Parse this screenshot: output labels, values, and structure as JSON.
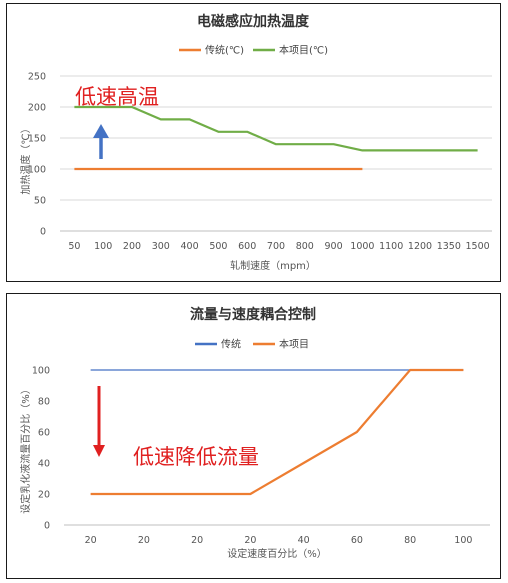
{
  "charts": [
    {
      "id": "chart1",
      "type": "line",
      "title": "电磁感应加热温度",
      "xlabel": "轧制速度（mpm）",
      "ylabel": "加热温度（℃）",
      "categories": [
        "50",
        "100",
        "200",
        "300",
        "400",
        "500",
        "600",
        "700",
        "800",
        "900",
        "1000",
        "1100",
        "1200",
        "1350",
        "1500"
      ],
      "yticks": [
        "0",
        "50",
        "100",
        "150",
        "200",
        "250"
      ],
      "ylim": [
        0,
        250
      ],
      "grid": true,
      "legend": "top",
      "annotation": "低速高温",
      "series": [
        {
          "name": "传统(℃)",
          "color": "#ED7D31",
          "values": [
            100,
            100,
            100,
            100,
            100,
            100,
            100,
            100,
            100,
            100,
            100,
            null,
            null,
            null,
            null
          ]
        },
        {
          "name": "本项目(℃)",
          "color": "#70AD47",
          "values": [
            200,
            200,
            200,
            180,
            180,
            160,
            160,
            140,
            140,
            140,
            130,
            130,
            130,
            130,
            130
          ]
        }
      ]
    },
    {
      "id": "chart2",
      "type": "line",
      "title": "流量与速度耦合控制",
      "xlabel": "设定速度百分比（%）",
      "ylabel": "设定乳化液流量百分比（%）",
      "categories": [
        "20",
        "20",
        "20",
        "20",
        "40",
        "60",
        "80",
        "100"
      ],
      "yticks": [
        "0",
        "20",
        "40",
        "60",
        "80",
        "100"
      ],
      "ylim": [
        0,
        100
      ],
      "grid": false,
      "legend": "top",
      "annotation": "低速降低流量",
      "series": [
        {
          "name": "传统",
          "color": "#4472C4",
          "values": [
            100,
            100,
            100,
            100,
            100,
            100,
            100,
            100
          ]
        },
        {
          "name": "本项目",
          "color": "#ED7D31",
          "values": [
            20,
            20,
            20,
            20,
            40,
            60,
            100,
            100
          ]
        }
      ]
    }
  ],
  "colors": {
    "arrow_up": "#4472C4",
    "arrow_down": "#e02020"
  }
}
